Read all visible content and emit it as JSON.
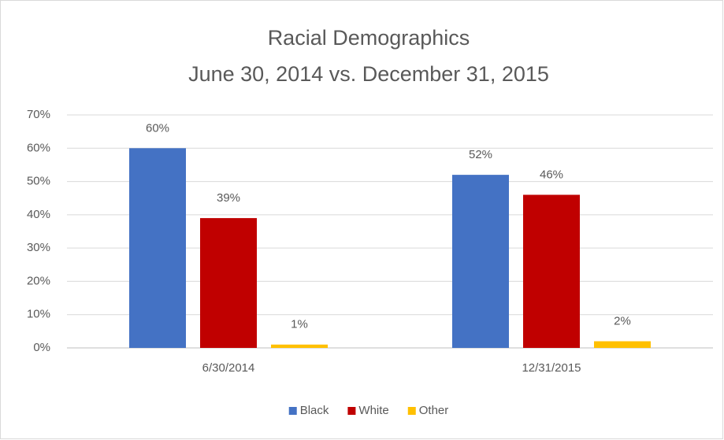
{
  "chart_data": {
    "type": "bar",
    "title": "Racial Demographics",
    "subtitle": "June 30, 2014 vs. December 31, 2015",
    "categories": [
      "6/30/2014",
      "12/31/2015"
    ],
    "series": [
      {
        "name": "Black",
        "color": "#4472c4",
        "values": [
          60,
          52
        ],
        "value_labels": [
          "60%",
          "52%"
        ]
      },
      {
        "name": "White",
        "color": "#c00000",
        "values": [
          39,
          46
        ],
        "value_labels": [
          "39%",
          "46%"
        ]
      },
      {
        "name": "Other",
        "color": "#ffc000",
        "values": [
          1,
          2
        ],
        "value_labels": [
          "1%",
          "2%"
        ]
      }
    ],
    "ylim": [
      0,
      70
    ],
    "yticks": [
      {
        "value": 0,
        "label": "0%"
      },
      {
        "value": 10,
        "label": "10%"
      },
      {
        "value": 20,
        "label": "20%"
      },
      {
        "value": 30,
        "label": "30%"
      },
      {
        "value": 40,
        "label": "40%"
      },
      {
        "value": 50,
        "label": "50%"
      },
      {
        "value": 60,
        "label": "60%"
      },
      {
        "value": 70,
        "label": "70%"
      }
    ],
    "grid": true,
    "legend": "bottom"
  }
}
